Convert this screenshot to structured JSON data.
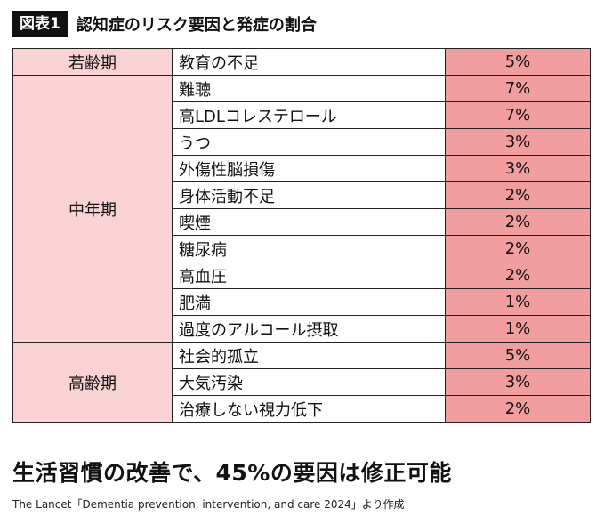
{
  "header": {
    "figure_label": "図表1",
    "title": "認知症のリスク要因と発症の割合"
  },
  "table": {
    "groups": [
      {
        "name": "若齢期",
        "rows": [
          {
            "factor": "教育の不足",
            "percent": "5%"
          }
        ]
      },
      {
        "name": "中年期",
        "rows": [
          {
            "factor": "難聴",
            "percent": "7%"
          },
          {
            "factor": "高LDLコレステロール",
            "percent": "7%"
          },
          {
            "factor": "うつ",
            "percent": "3%"
          },
          {
            "factor": "外傷性脳損傷",
            "percent": "3%"
          },
          {
            "factor": "身体活動不足",
            "percent": "2%"
          },
          {
            "factor": "喫煙",
            "percent": "2%"
          },
          {
            "factor": "糖尿病",
            "percent": "2%"
          },
          {
            "factor": "高血圧",
            "percent": "2%"
          },
          {
            "factor": "肥満",
            "percent": "1%"
          },
          {
            "factor": "過度のアルコール摂取",
            "percent": "1%"
          }
        ]
      },
      {
        "name": "高齢期",
        "rows": [
          {
            "factor": "社会的孤立",
            "percent": "5%"
          },
          {
            "factor": "大気汚染",
            "percent": "3%"
          },
          {
            "factor": "治療しない視力低下",
            "percent": "2%"
          }
        ]
      }
    ]
  },
  "headline": "生活習慣の改善で、45%の要因は修正可能",
  "source": "The Lancet「Dementia prevention, intervention, and care 2024」より作成",
  "colors": {
    "group_cell": "#f9d3d4",
    "percent_cell": "#f29e9f",
    "label_bg": "#111111"
  }
}
